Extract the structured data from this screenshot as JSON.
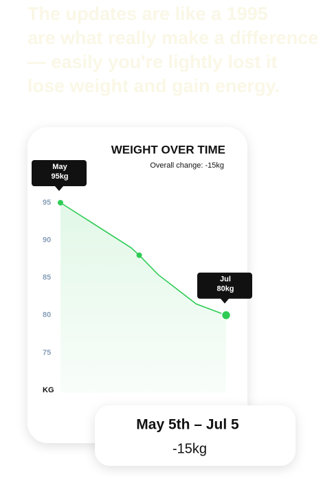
{
  "intro": {
    "lines": [
      "The updates are like a 1995",
      "are what really make a difference",
      "— easily you're lightly lost it",
      "lose weight and gain energy."
    ]
  },
  "chart_data": {
    "type": "line",
    "title": "WEIGHT OVER TIME",
    "subtitle": "Overall change: -15kg",
    "x": [
      0,
      26,
      29,
      36,
      50,
      61
    ],
    "xlim": [
      0,
      61
    ],
    "series": [
      {
        "color": "#2ecc55",
        "values": [
          95,
          89,
          88,
          85.4,
          81.5,
          80
        ]
      }
    ],
    "ylim": [
      70,
      95
    ],
    "yticks": [
      {
        "value": 70,
        "label": "KG"
      },
      75,
      80,
      85,
      90,
      95
    ],
    "markers": [
      0,
      2,
      5
    ],
    "annotations": [
      {
        "point": 0,
        "lines": [
          "May",
          "95kg"
        ]
      },
      {
        "point": 5,
        "lines": [
          "Jul",
          "80kg"
        ]
      }
    ]
  },
  "summary": {
    "range": "May 5th – Jul 5",
    "change": "-15kg"
  }
}
